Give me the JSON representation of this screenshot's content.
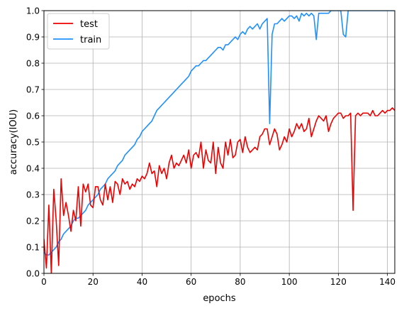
{
  "chart_data": {
    "type": "line",
    "title": "",
    "xlabel": "epochs",
    "ylabel": "accuracy(IOU)",
    "xlim": [
      0,
      143
    ],
    "ylim": [
      0,
      1.0
    ],
    "grid": true,
    "legend_position": "upper left",
    "x_ticks": [
      0,
      20,
      40,
      60,
      80,
      100,
      120,
      140
    ],
    "y_ticks": [
      0.0,
      0.1,
      0.2,
      0.3,
      0.4,
      0.5,
      0.6,
      0.7,
      0.8,
      0.9,
      1.0
    ],
    "series": [
      {
        "name": "test",
        "color": "#ee0000",
        "x": [
          0,
          1,
          2,
          3,
          4,
          5,
          6,
          7,
          8,
          9,
          10,
          11,
          12,
          13,
          14,
          15,
          16,
          17,
          18,
          19,
          20,
          21,
          22,
          23,
          24,
          25,
          26,
          27,
          28,
          29,
          30,
          31,
          32,
          33,
          34,
          35,
          36,
          37,
          38,
          39,
          40,
          41,
          42,
          43,
          44,
          45,
          46,
          47,
          48,
          49,
          50,
          51,
          52,
          53,
          54,
          55,
          56,
          57,
          58,
          59,
          60,
          61,
          62,
          63,
          64,
          65,
          66,
          67,
          68,
          69,
          70,
          71,
          72,
          73,
          74,
          75,
          76,
          77,
          78,
          79,
          80,
          81,
          82,
          83,
          84,
          85,
          86,
          87,
          88,
          89,
          90,
          91,
          92,
          93,
          94,
          95,
          96,
          97,
          98,
          99,
          100,
          101,
          102,
          103,
          104,
          105,
          106,
          107,
          108,
          109,
          110,
          111,
          112,
          113,
          114,
          115,
          116,
          117,
          118,
          119,
          120,
          121,
          122,
          123,
          124,
          125,
          126,
          127,
          128,
          129,
          130,
          131,
          132,
          133,
          134,
          135,
          136,
          137,
          138,
          139,
          140,
          141,
          142,
          143
        ],
        "y": [
          0.13,
          0.02,
          0.26,
          0.0,
          0.32,
          0.2,
          0.03,
          0.36,
          0.22,
          0.27,
          0.22,
          0.16,
          0.24,
          0.2,
          0.33,
          0.18,
          0.34,
          0.31,
          0.34,
          0.26,
          0.25,
          0.33,
          0.33,
          0.28,
          0.26,
          0.34,
          0.28,
          0.33,
          0.27,
          0.35,
          0.34,
          0.3,
          0.36,
          0.34,
          0.35,
          0.32,
          0.34,
          0.33,
          0.36,
          0.35,
          0.37,
          0.36,
          0.38,
          0.42,
          0.38,
          0.39,
          0.33,
          0.41,
          0.38,
          0.4,
          0.36,
          0.42,
          0.45,
          0.4,
          0.42,
          0.41,
          0.43,
          0.45,
          0.42,
          0.47,
          0.4,
          0.45,
          0.46,
          0.44,
          0.5,
          0.4,
          0.47,
          0.43,
          0.42,
          0.5,
          0.38,
          0.48,
          0.42,
          0.4,
          0.5,
          0.45,
          0.51,
          0.44,
          0.45,
          0.5,
          0.51,
          0.46,
          0.52,
          0.48,
          0.46,
          0.47,
          0.48,
          0.47,
          0.52,
          0.53,
          0.55,
          0.55,
          0.49,
          0.52,
          0.55,
          0.53,
          0.47,
          0.49,
          0.52,
          0.5,
          0.55,
          0.52,
          0.54,
          0.57,
          0.55,
          0.57,
          0.54,
          0.55,
          0.59,
          0.52,
          0.55,
          0.58,
          0.6,
          0.59,
          0.58,
          0.6,
          0.54,
          0.57,
          0.59,
          0.6,
          0.61,
          0.61,
          0.59,
          0.6,
          0.6,
          0.61,
          0.24,
          0.6,
          0.61,
          0.6,
          0.61,
          0.61,
          0.61,
          0.6,
          0.62,
          0.6,
          0.6,
          0.61,
          0.62,
          0.61,
          0.62,
          0.62,
          0.63,
          0.62
        ]
      },
      {
        "name": "train",
        "color": "#1e90ff",
        "x": [
          0,
          1,
          2,
          3,
          4,
          5,
          6,
          7,
          8,
          9,
          10,
          11,
          12,
          13,
          14,
          15,
          16,
          17,
          18,
          19,
          20,
          21,
          22,
          23,
          24,
          25,
          26,
          27,
          28,
          29,
          30,
          31,
          32,
          33,
          34,
          35,
          36,
          37,
          38,
          39,
          40,
          41,
          42,
          43,
          44,
          45,
          46,
          47,
          48,
          49,
          50,
          51,
          52,
          53,
          54,
          55,
          56,
          57,
          58,
          59,
          60,
          61,
          62,
          63,
          64,
          65,
          66,
          67,
          68,
          69,
          70,
          71,
          72,
          73,
          74,
          75,
          76,
          77,
          78,
          79,
          80,
          81,
          82,
          83,
          84,
          85,
          86,
          87,
          88,
          89,
          90,
          91,
          92,
          93,
          94,
          95,
          96,
          97,
          98,
          99,
          100,
          101,
          102,
          103,
          104,
          105,
          106,
          107,
          108,
          109,
          110,
          111,
          112,
          113,
          114,
          115,
          116,
          117,
          118,
          119,
          120,
          121,
          122,
          123,
          124,
          125,
          126,
          127,
          128,
          129,
          130,
          131,
          132,
          133,
          134,
          135,
          136,
          137,
          138,
          139,
          140,
          141,
          142,
          143
        ],
        "y": [
          0.08,
          0.07,
          0.07,
          0.08,
          0.09,
          0.1,
          0.12,
          0.13,
          0.15,
          0.16,
          0.17,
          0.18,
          0.2,
          0.21,
          0.21,
          0.22,
          0.23,
          0.24,
          0.26,
          0.27,
          0.28,
          0.29,
          0.3,
          0.32,
          0.33,
          0.34,
          0.36,
          0.37,
          0.38,
          0.39,
          0.41,
          0.42,
          0.43,
          0.45,
          0.46,
          0.47,
          0.48,
          0.49,
          0.51,
          0.52,
          0.54,
          0.55,
          0.56,
          0.57,
          0.58,
          0.6,
          0.62,
          0.63,
          0.64,
          0.65,
          0.66,
          0.67,
          0.68,
          0.69,
          0.7,
          0.71,
          0.72,
          0.73,
          0.74,
          0.75,
          0.77,
          0.78,
          0.79,
          0.79,
          0.8,
          0.81,
          0.81,
          0.82,
          0.83,
          0.84,
          0.85,
          0.86,
          0.86,
          0.85,
          0.87,
          0.87,
          0.88,
          0.89,
          0.9,
          0.89,
          0.91,
          0.92,
          0.91,
          0.93,
          0.94,
          0.93,
          0.94,
          0.95,
          0.93,
          0.95,
          0.96,
          0.97,
          0.57,
          0.91,
          0.95,
          0.95,
          0.96,
          0.97,
          0.96,
          0.97,
          0.98,
          0.98,
          0.97,
          0.98,
          0.96,
          0.99,
          0.98,
          0.99,
          0.98,
          0.99,
          0.98,
          0.89,
          0.99,
          0.99,
          0.99,
          0.99,
          0.99,
          1.0,
          1.0,
          1.0,
          1.0,
          1.0,
          0.91,
          0.9,
          1.0,
          1.0,
          1.0,
          1.0,
          1.0,
          1.0,
          1.0,
          1.0,
          1.0,
          1.0,
          1.0,
          1.0,
          1.0,
          1.0,
          1.0,
          1.0,
          1.0,
          1.0,
          1.0,
          1.0
        ]
      }
    ]
  }
}
